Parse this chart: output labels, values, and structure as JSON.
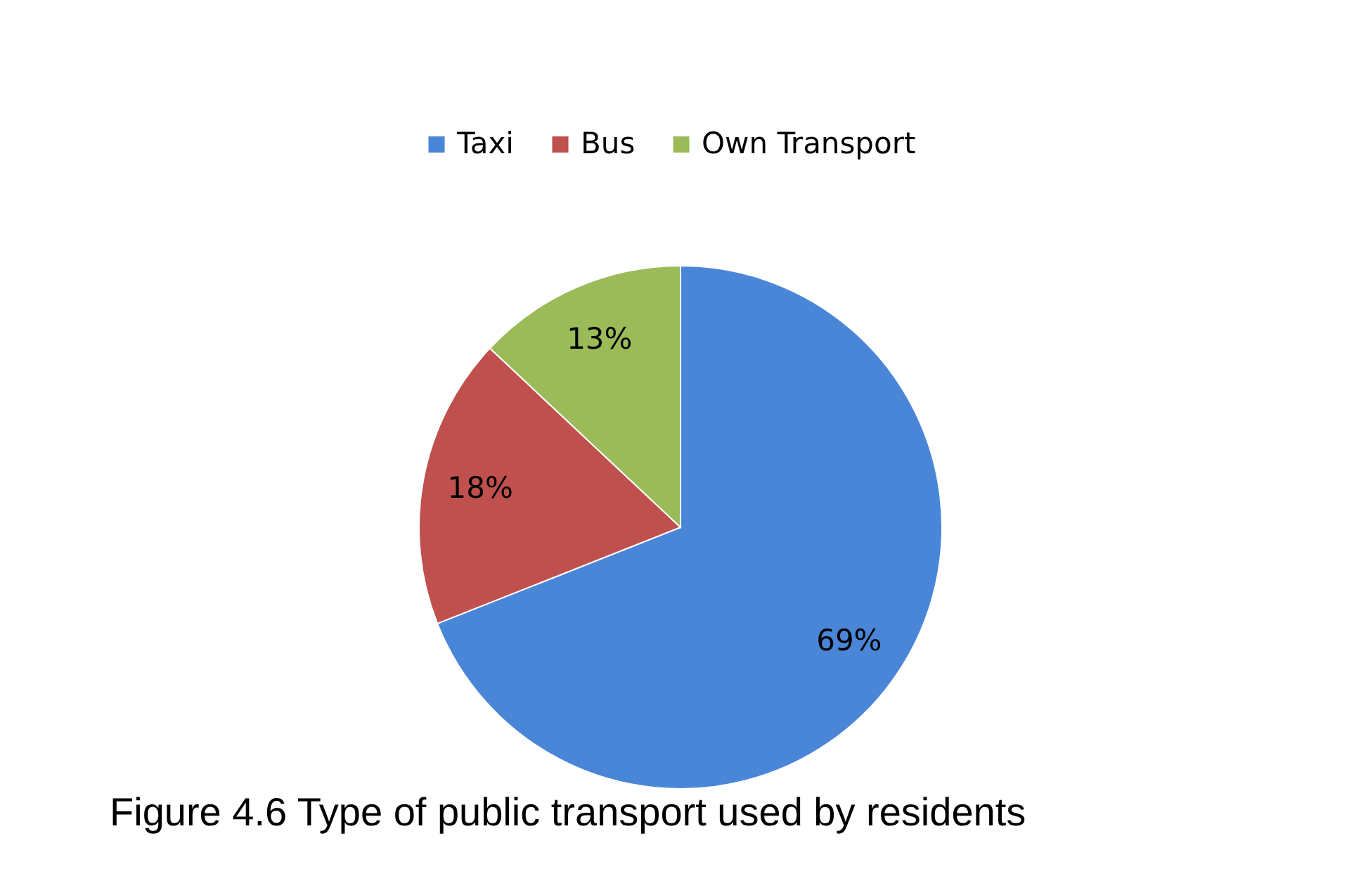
{
  "chart_data": {
    "type": "pie",
    "categories": [
      "Taxi",
      "Bus",
      "Own Transport"
    ],
    "values": [
      69,
      18,
      13
    ],
    "colors": [
      "#4a86d8",
      "#c0504d",
      "#9bbb59"
    ],
    "value_labels": [
      "69%",
      "18%",
      "13%"
    ],
    "legend": "top",
    "annotations": [
      "Figure 4.6 Type of public transport used by residents"
    ]
  }
}
